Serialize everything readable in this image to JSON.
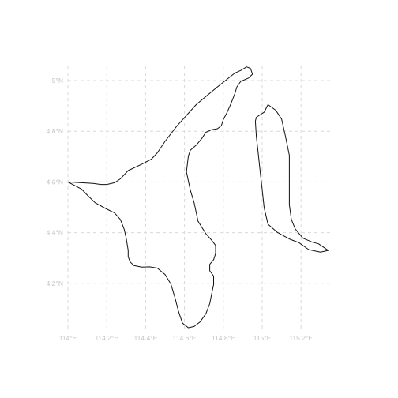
{
  "map": {
    "type": "outline map",
    "grid": true,
    "lon_range": [
      114.0,
      115.4
    ],
    "lat_range": [
      4.0,
      5.1
    ],
    "lon_ticks": [
      {
        "value": 114.0,
        "label": "114°E"
      },
      {
        "value": 114.2,
        "label": "114.2°E"
      },
      {
        "value": 114.4,
        "label": "114.4°E"
      },
      {
        "value": 114.6,
        "label": "114.6°E"
      },
      {
        "value": 114.8,
        "label": "114.8°E"
      },
      {
        "value": 115.0,
        "label": "115°E"
      },
      {
        "value": 115.2,
        "label": "115.2°E"
      }
    ],
    "lat_ticks": [
      {
        "value": 5.0,
        "label": "5°N"
      },
      {
        "value": 4.8,
        "label": "4.8°N"
      },
      {
        "value": 4.6,
        "label": "4.6°N"
      },
      {
        "value": 4.4,
        "label": "4.4°N"
      },
      {
        "value": 4.2,
        "label": "4.2°N"
      }
    ],
    "colors": {
      "outline": "#111111",
      "grid": "#d9d9d9",
      "tick_text": "#c4c4c4"
    },
    "regions": [
      {
        "id": "west",
        "coords": [
          [
            114.0,
            4.6
          ],
          [
            114.13,
            4.594
          ],
          [
            114.17,
            4.59
          ],
          [
            114.2,
            4.59
          ],
          [
            114.24,
            4.597
          ],
          [
            114.27,
            4.612
          ],
          [
            114.31,
            4.645
          ],
          [
            114.38,
            4.67
          ],
          [
            114.43,
            4.69
          ],
          [
            114.46,
            4.715
          ],
          [
            114.5,
            4.76
          ],
          [
            114.56,
            4.82
          ],
          [
            114.66,
            4.905
          ],
          [
            114.77,
            4.975
          ],
          [
            114.86,
            5.03
          ],
          [
            114.89,
            5.04
          ],
          [
            114.92,
            5.054
          ],
          [
            114.94,
            5.048
          ],
          [
            114.95,
            5.025
          ],
          [
            114.93,
            5.01
          ],
          [
            114.89,
            4.997
          ],
          [
            114.87,
            4.975
          ],
          [
            114.86,
            4.95
          ],
          [
            114.84,
            4.91
          ],
          [
            114.82,
            4.875
          ],
          [
            114.8,
            4.846
          ],
          [
            114.79,
            4.822
          ],
          [
            114.77,
            4.81
          ],
          [
            114.74,
            4.806
          ],
          [
            114.71,
            4.796
          ],
          [
            114.69,
            4.772
          ],
          [
            114.66,
            4.745
          ],
          [
            114.63,
            4.725
          ],
          [
            114.62,
            4.702
          ],
          [
            114.61,
            4.64
          ],
          [
            114.63,
            4.568
          ],
          [
            114.65,
            4.517
          ],
          [
            114.67,
            4.445
          ],
          [
            114.71,
            4.396
          ],
          [
            114.74,
            4.37
          ],
          [
            114.76,
            4.35
          ],
          [
            114.76,
            4.317
          ],
          [
            114.75,
            4.293
          ],
          [
            114.73,
            4.275
          ],
          [
            114.73,
            4.25
          ],
          [
            114.75,
            4.229
          ],
          [
            114.75,
            4.195
          ],
          [
            114.74,
            4.158
          ],
          [
            114.73,
            4.12
          ],
          [
            114.71,
            4.08
          ],
          [
            114.68,
            4.048
          ],
          [
            114.65,
            4.03
          ],
          [
            114.62,
            4.025
          ],
          [
            114.59,
            4.043
          ],
          [
            114.57,
            4.088
          ],
          [
            114.55,
            4.146
          ],
          [
            114.53,
            4.197
          ],
          [
            114.5,
            4.235
          ],
          [
            114.46,
            4.26
          ],
          [
            114.42,
            4.265
          ],
          [
            114.38,
            4.264
          ],
          [
            114.34,
            4.27
          ],
          [
            114.32,
            4.285
          ],
          [
            114.31,
            4.305
          ],
          [
            114.31,
            4.33
          ],
          [
            114.3,
            4.378
          ],
          [
            114.29,
            4.413
          ],
          [
            114.27,
            4.452
          ],
          [
            114.24,
            4.478
          ],
          [
            114.19,
            4.497
          ],
          [
            114.14,
            4.518
          ],
          [
            114.1,
            4.548
          ],
          [
            114.07,
            4.572
          ],
          [
            114.0,
            4.6
          ]
        ]
      },
      {
        "id": "east",
        "coords": [
          [
            114.97,
            4.855
          ],
          [
            115.01,
            4.875
          ],
          [
            115.03,
            4.905
          ],
          [
            115.07,
            4.883
          ],
          [
            115.1,
            4.848
          ],
          [
            115.12,
            4.78
          ],
          [
            115.14,
            4.705
          ],
          [
            115.14,
            4.64
          ],
          [
            115.14,
            4.575
          ],
          [
            115.14,
            4.51
          ],
          [
            115.15,
            4.453
          ],
          [
            115.17,
            4.415
          ],
          [
            115.21,
            4.378
          ],
          [
            115.26,
            4.362
          ],
          [
            115.29,
            4.356
          ],
          [
            115.34,
            4.33
          ],
          [
            115.3,
            4.323
          ],
          [
            115.24,
            4.333
          ],
          [
            115.19,
            4.36
          ],
          [
            115.14,
            4.375
          ],
          [
            115.08,
            4.4
          ],
          [
            115.03,
            4.433
          ],
          [
            115.01,
            4.498
          ],
          [
            115.0,
            4.57
          ],
          [
            114.99,
            4.64
          ],
          [
            114.98,
            4.71
          ],
          [
            114.97,
            4.78
          ],
          [
            114.965,
            4.84
          ],
          [
            114.97,
            4.855
          ]
        ]
      }
    ]
  }
}
